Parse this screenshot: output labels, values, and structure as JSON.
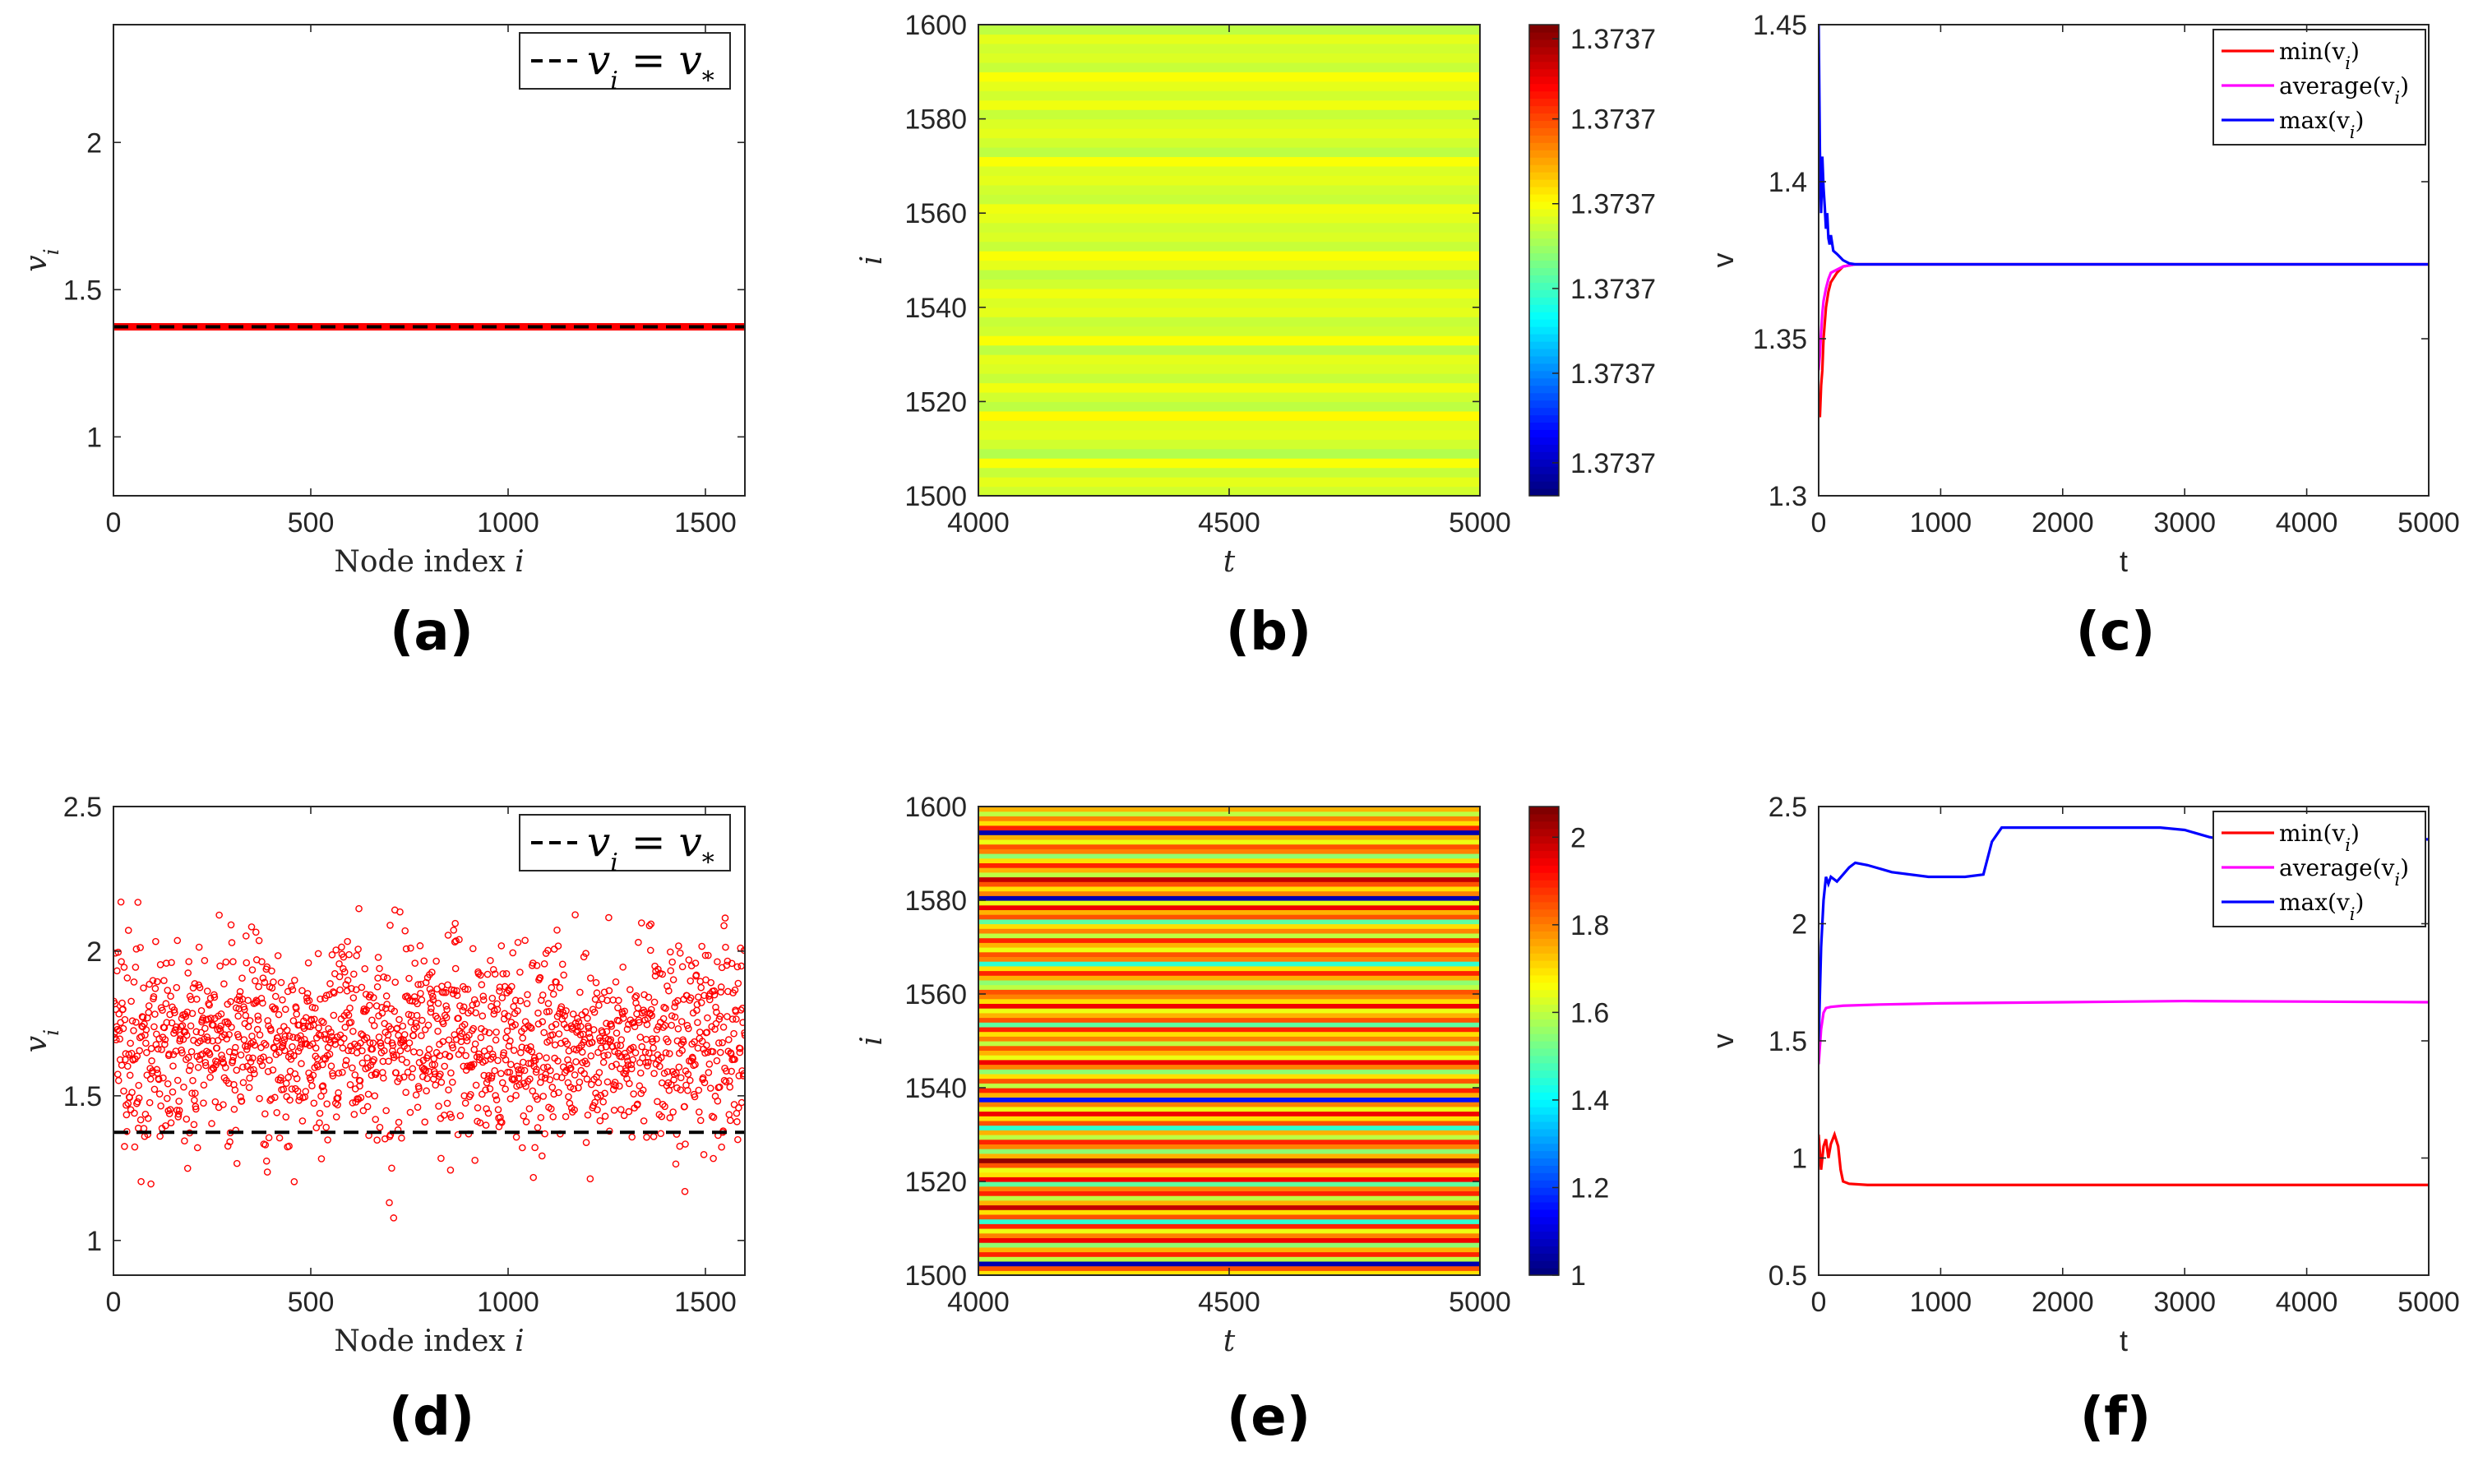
{
  "chart_data": [
    {
      "id": "a",
      "type": "scatter",
      "panel_label": "(a)",
      "xlabel": "Node index i",
      "ylabel": "v_i",
      "xlim": [
        0,
        1600
      ],
      "ylim": [
        0.8,
        2.4
      ],
      "xticks": [
        0,
        500,
        1000,
        1500
      ],
      "yticks": [
        1,
        1.5,
        2
      ],
      "xtick_labels": [
        "0",
        "500",
        "1000",
        "1500"
      ],
      "ytick_labels": [
        "1",
        "1.5",
        "2"
      ],
      "scatter": {
        "name": "v_i",
        "color": "#ff0000",
        "n": 1600,
        "center": 1.3737,
        "spread": 0.0
      },
      "reference_line": {
        "label": "v_i = v_*",
        "value": 1.3737,
        "color": "#000000",
        "style": "dashed"
      },
      "legend": {
        "position": "top-right",
        "entries": [
          "v_i = v_*"
        ]
      }
    },
    {
      "id": "b",
      "type": "heatmap",
      "panel_label": "(b)",
      "xlabel": "t",
      "ylabel": "i",
      "xlim": [
        4000,
        5000
      ],
      "ylim": [
        1500,
        1600
      ],
      "xticks": [
        4000,
        4500,
        5000
      ],
      "yticks": [
        1500,
        1520,
        1540,
        1560,
        1580,
        1600
      ],
      "xtick_labels": [
        "4000",
        "4500",
        "5000"
      ],
      "ytick_labels": [
        "1500",
        "1520",
        "1540",
        "1560",
        "1580",
        "1600"
      ],
      "colorbar_ticks": [
        "1.3737",
        "1.3737",
        "1.3737",
        "1.3737",
        "1.3737",
        "1.3737"
      ],
      "colorbar_fractions": [
        0.07,
        0.26,
        0.44,
        0.62,
        0.8,
        0.97
      ],
      "band_values": [
        0.58,
        0.6,
        0.57,
        0.62,
        0.55,
        0.58,
        0.6,
        0.59,
        0.63,
        0.56,
        0.58,
        0.61,
        0.57,
        0.59,
        0.6,
        0.56,
        0.62,
        0.58,
        0.57,
        0.6,
        0.59,
        0.61,
        0.58,
        0.56,
        0.6,
        0.62,
        0.57,
        0.59,
        0.58,
        0.6,
        0.61,
        0.57,
        0.58,
        0.6,
        0.59,
        0.62,
        0.56,
        0.58,
        0.6,
        0.59,
        0.57,
        0.61,
        0.58,
        0.6,
        0.62,
        0.57,
        0.59,
        0.58,
        0.6,
        0.56
      ]
    },
    {
      "id": "c",
      "type": "line",
      "panel_label": "(c)",
      "xlabel": "t",
      "ylabel": "v",
      "xlim": [
        0,
        5000
      ],
      "ylim": [
        1.3,
        1.45
      ],
      "xticks": [
        0,
        1000,
        2000,
        3000,
        4000,
        5000
      ],
      "yticks": [
        1.3,
        1.35,
        1.4,
        1.45
      ],
      "xtick_labels": [
        "0",
        "1000",
        "2000",
        "3000",
        "4000",
        "5000"
      ],
      "ytick_labels": [
        "1.3",
        "1.35",
        "1.4",
        "1.45"
      ],
      "series": [
        {
          "name": "min(v_i)",
          "color": "#ff0000",
          "x": [
            0,
            10,
            20,
            30,
            40,
            50,
            60,
            80,
            100,
            150,
            200,
            300,
            400,
            5000
          ],
          "y": [
            1.33,
            1.325,
            1.335,
            1.34,
            1.35,
            1.355,
            1.36,
            1.365,
            1.368,
            1.371,
            1.373,
            1.3737,
            1.3737,
            1.3737
          ]
        },
        {
          "name": "average(v_i)",
          "color": "#ff00ff",
          "x": [
            0,
            10,
            20,
            30,
            40,
            60,
            80,
            100,
            150,
            200,
            300,
            5000
          ],
          "y": [
            1.34,
            1.345,
            1.352,
            1.358,
            1.362,
            1.366,
            1.369,
            1.371,
            1.372,
            1.373,
            1.3737,
            1.3737
          ]
        },
        {
          "name": "max(v_i)",
          "color": "#0000ff",
          "x": [
            0,
            10,
            20,
            30,
            40,
            50,
            60,
            70,
            80,
            90,
            100,
            120,
            150,
            200,
            250,
            300,
            400,
            5000
          ],
          "y": [
            1.45,
            1.41,
            1.39,
            1.408,
            1.398,
            1.392,
            1.385,
            1.39,
            1.382,
            1.38,
            1.383,
            1.378,
            1.377,
            1.375,
            1.374,
            1.3737,
            1.3737,
            1.3737
          ]
        }
      ],
      "legend": {
        "position": "top-right",
        "entries": [
          "min(v_i)",
          "average(v_i)",
          "max(v_i)"
        ]
      }
    },
    {
      "id": "d",
      "type": "scatter",
      "panel_label": "(d)",
      "xlabel": "Node index i",
      "ylabel": "v_i",
      "xlim": [
        0,
        1600
      ],
      "ylim": [
        0.88,
        2.5
      ],
      "xticks": [
        0,
        500,
        1000,
        1500
      ],
      "yticks": [
        1,
        1.5,
        2,
        2.5
      ],
      "xtick_labels": [
        "0",
        "500",
        "1000",
        "1500"
      ],
      "ytick_labels": [
        "1",
        "1.5",
        "2",
        "2.5"
      ],
      "scatter": {
        "name": "v_i",
        "color": "#ff0000",
        "n": 1600,
        "center": 1.68,
        "spread": 0.17
      },
      "reference_line": {
        "label": "v_i = v_*",
        "value": 1.3737,
        "color": "#000000",
        "style": "dashed"
      },
      "legend": {
        "position": "top-right",
        "entries": [
          "v_i = v_*"
        ]
      }
    },
    {
      "id": "e",
      "type": "heatmap",
      "panel_label": "(e)",
      "xlabel": "t",
      "ylabel": "i",
      "xlim": [
        4000,
        5000
      ],
      "ylim": [
        1500,
        1600
      ],
      "xticks": [
        4000,
        4500,
        5000
      ],
      "yticks": [
        1500,
        1520,
        1540,
        1560,
        1580,
        1600
      ],
      "xtick_labels": [
        "4000",
        "4500",
        "5000"
      ],
      "ytick_labels": [
        "1500",
        "1520",
        "1540",
        "1560",
        "1580",
        "1600"
      ],
      "colorbar_ticks": [
        "1",
        "1.2",
        "1.4",
        "1.6",
        "1.8",
        "2"
      ],
      "colorbar_range": [
        1.0,
        2.07
      ],
      "band_values": [
        1.7,
        1.85,
        1.05,
        1.6,
        1.9,
        1.75,
        1.55,
        1.95,
        1.8,
        1.65,
        1.9,
        1.45,
        1.85,
        1.7,
        2.0,
        1.75,
        1.6,
        1.9,
        1.8,
        1.5,
        1.95,
        1.7,
        1.65,
        1.85,
        2.05,
        1.75,
        1.55,
        1.8,
        1.9,
        1.6,
        1.75,
        1.45,
        1.85,
        1.7,
        1.95,
        1.65,
        1.8,
        1.15,
        1.75,
        1.9,
        1.6,
        1.85,
        1.7,
        1.55,
        1.8,
        1.95,
        1.65,
        1.75,
        1.85,
        1.6,
        1.8,
        1.7,
        1.9,
        1.5,
        1.85,
        1.75,
        1.65,
        1.95,
        1.7,
        1.8,
        1.85,
        1.6,
        1.55,
        1.75,
        1.9,
        1.7,
        1.45,
        1.8,
        1.85,
        1.65,
        1.75,
        1.9,
        1.6,
        1.8,
        1.7,
        1.5,
        1.85,
        1.75,
        1.95,
        1.65,
        1.05,
        1.8,
        1.7,
        1.85,
        2.0,
        1.6,
        1.75,
        1.9,
        1.7,
        1.55,
        1.8,
        1.85,
        1.65,
        1.75,
        1.05,
        1.9,
        1.7,
        1.8,
        1.6,
        1.75
      ]
    },
    {
      "id": "f",
      "type": "line",
      "panel_label": "(f)",
      "xlabel": "t",
      "ylabel": "v",
      "xlim": [
        0,
        5000
      ],
      "ylim": [
        0.5,
        2.5
      ],
      "xticks": [
        0,
        1000,
        2000,
        3000,
        4000,
        5000
      ],
      "yticks": [
        0.5,
        1,
        1.5,
        2,
        2.5
      ],
      "xtick_labels": [
        "0",
        "1000",
        "2000",
        "3000",
        "4000",
        "5000"
      ],
      "ytick_labels": [
        "0.5",
        "1",
        "1.5",
        "2",
        "2.5"
      ],
      "series": [
        {
          "name": "min(v_i)",
          "color": "#ff0000",
          "x": [
            0,
            20,
            40,
            60,
            80,
            100,
            130,
            160,
            180,
            200,
            250,
            400,
            1000,
            2000,
            5000
          ],
          "y": [
            1.1,
            0.95,
            1.05,
            1.08,
            1.0,
            1.06,
            1.1,
            1.05,
            0.95,
            0.9,
            0.89,
            0.885,
            0.885,
            0.885,
            0.885
          ]
        },
        {
          "name": "average(v_i)",
          "color": "#ff00ff",
          "x": [
            0,
            20,
            40,
            60,
            100,
            200,
            500,
            1000,
            2000,
            3000,
            5000
          ],
          "y": [
            1.4,
            1.55,
            1.62,
            1.64,
            1.645,
            1.65,
            1.655,
            1.66,
            1.665,
            1.67,
            1.665
          ]
        },
        {
          "name": "max(v_i)",
          "color": "#0000ff",
          "x": [
            0,
            20,
            40,
            60,
            80,
            100,
            150,
            200,
            250,
            300,
            400,
            600,
            900,
            1200,
            1350,
            1420,
            1500,
            2000,
            2500,
            2800,
            3000,
            3200,
            3300,
            5000
          ],
          "y": [
            1.5,
            1.9,
            2.1,
            2.2,
            2.17,
            2.2,
            2.18,
            2.21,
            2.24,
            2.26,
            2.25,
            2.22,
            2.2,
            2.2,
            2.21,
            2.35,
            2.41,
            2.41,
            2.41,
            2.41,
            2.4,
            2.37,
            2.36,
            2.36
          ]
        }
      ],
      "legend": {
        "position": "top-right",
        "entries": [
          "min(v_i)",
          "average(v_i)",
          "max(v_i)"
        ]
      }
    }
  ]
}
